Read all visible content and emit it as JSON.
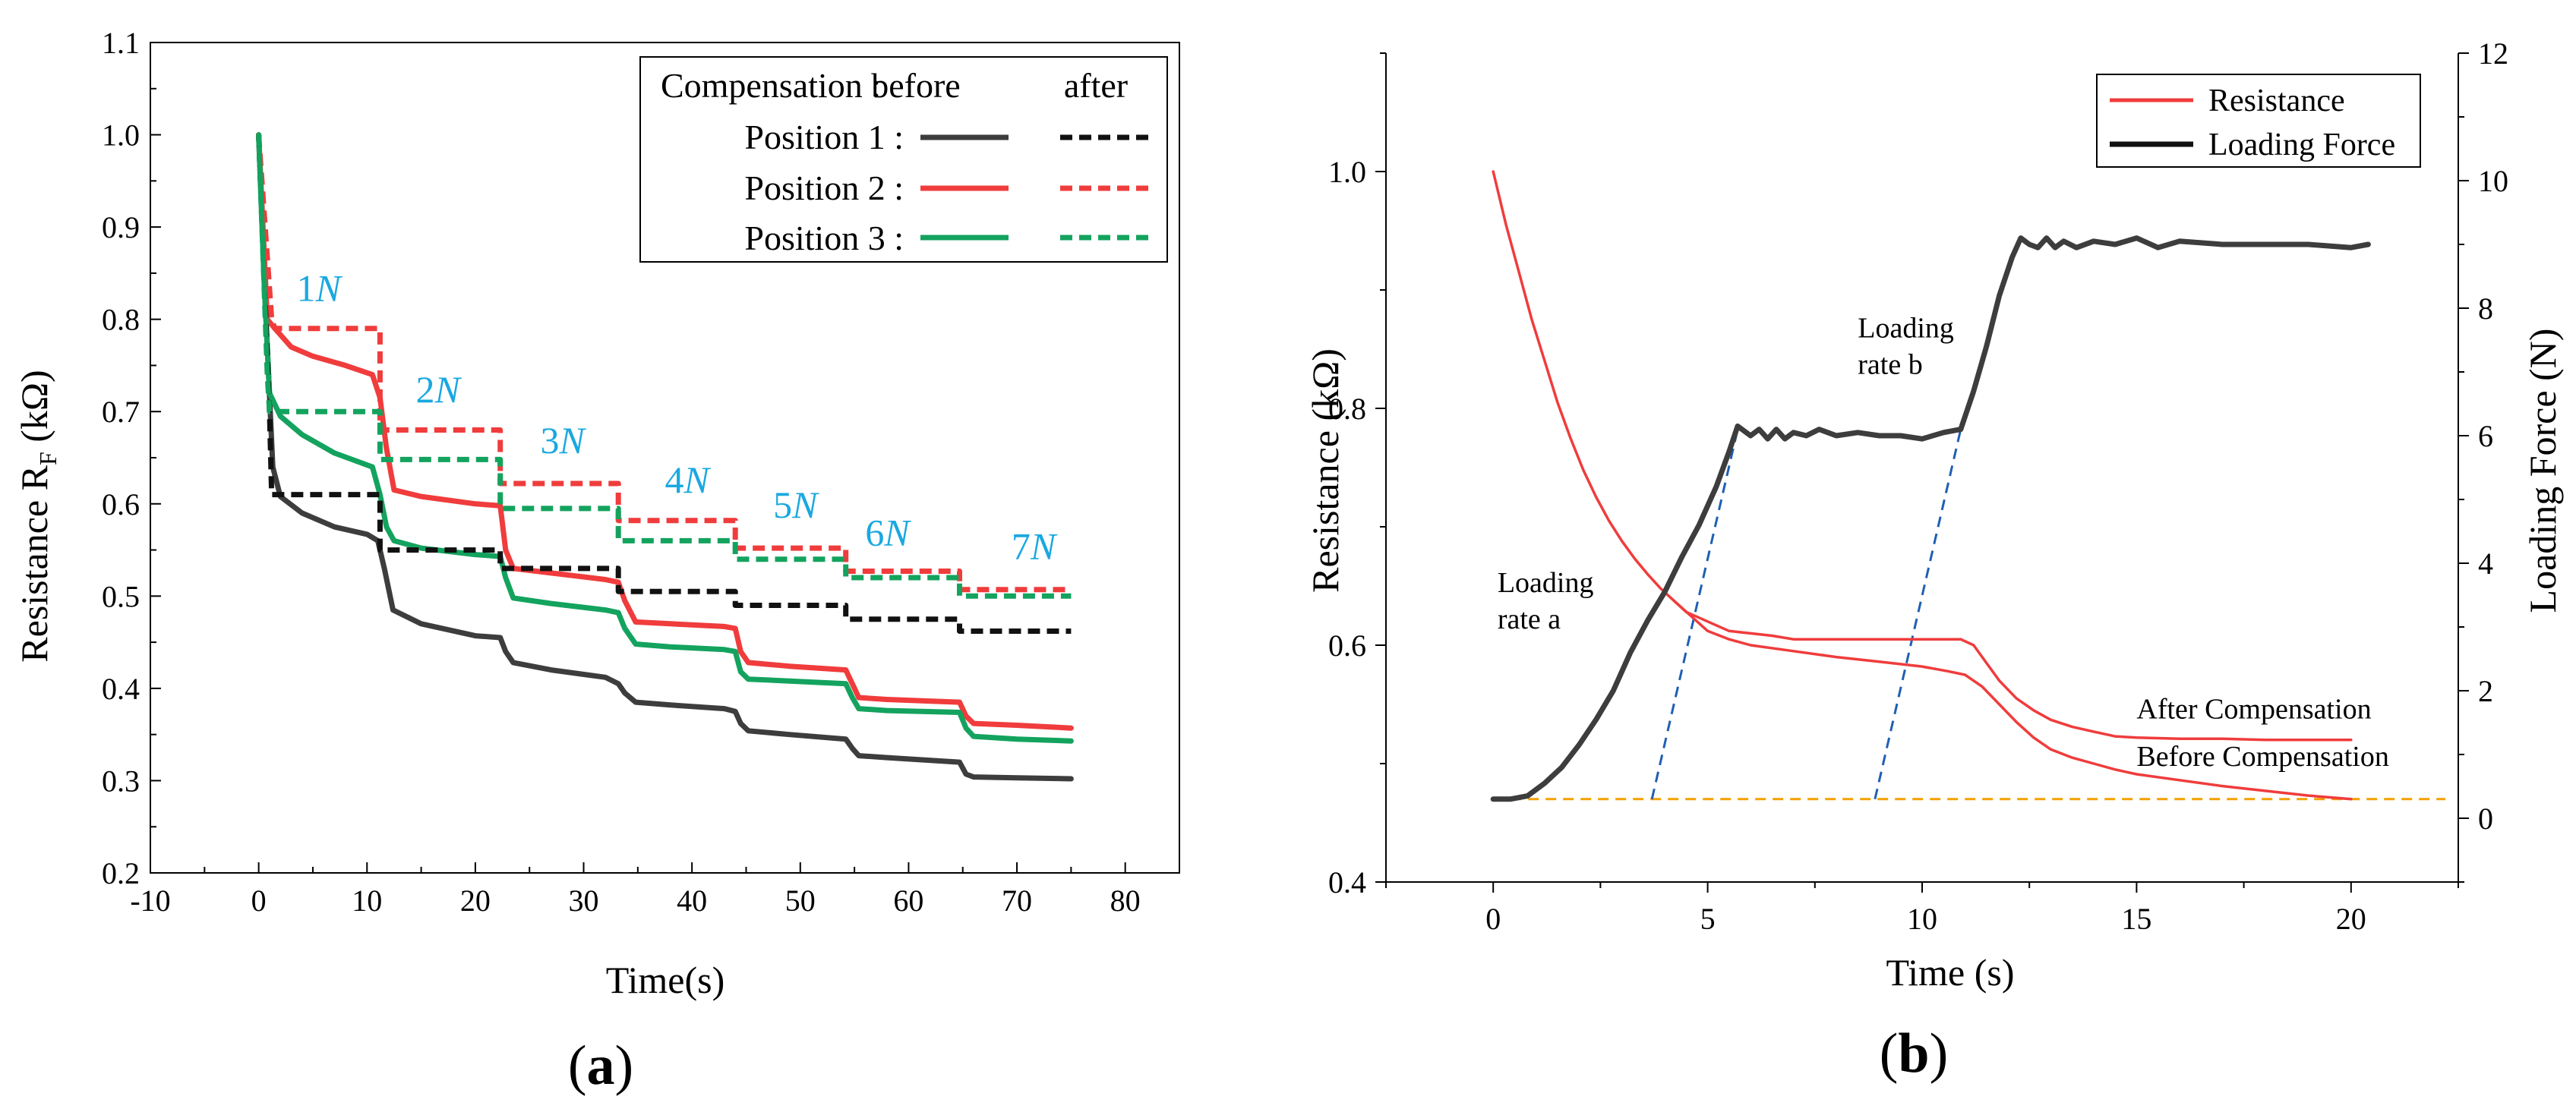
{
  "panels": [
    {
      "id": "a",
      "caption": {
        "open": "(",
        "letter": "a",
        "close": ")"
      },
      "chart_data": {
        "type": "line",
        "title": "",
        "xlabel": "Time(s)",
        "ylabel": "Resistance R",
        "ylabel_sub": "F",
        "ylabel_unit": " (kΩ)",
        "xlim": [
          -10,
          85
        ],
        "ylim": [
          0.2,
          1.1
        ],
        "xticks": [
          -10,
          0,
          10,
          20,
          30,
          40,
          50,
          60,
          70,
          80
        ],
        "yticks": [
          0.2,
          0.3,
          0.4,
          0.5,
          0.6,
          0.7,
          0.8,
          0.9,
          1.0,
          1.1
        ],
        "grid": false,
        "legend": {
          "placement": "top-right",
          "header_label": "Compensation :",
          "col_before": "before",
          "col_after": "after",
          "rows": [
            {
              "label": "Position 1 :",
              "color": "#3d3d3d"
            },
            {
              "label": "Position 2 :",
              "color": "#f03c3c"
            },
            {
              "label": "Position 3 :",
              "color": "#13a35e"
            }
          ]
        },
        "annotations": [
          {
            "num": "1",
            "unit": "N",
            "x": 3.5,
            "y": 0.82
          },
          {
            "num": "2",
            "unit": "N",
            "x": 14.5,
            "y": 0.71
          },
          {
            "num": "3",
            "unit": "N",
            "x": 26,
            "y": 0.655
          },
          {
            "num": "4",
            "unit": "N",
            "x": 37.5,
            "y": 0.612
          },
          {
            "num": "5",
            "unit": "N",
            "x": 47.5,
            "y": 0.585
          },
          {
            "num": "6",
            "unit": "N",
            "x": 56,
            "y": 0.555
          },
          {
            "num": "7",
            "unit": "N",
            "x": 69.5,
            "y": 0.54
          }
        ],
        "annotation_color": "#1aa8e0",
        "series": [
          {
            "name": "Position 1 before",
            "color": "#3d3d3d",
            "dash": false,
            "x": [
              0,
              0.6,
              1.3,
              2,
              4,
              7,
              10,
              11,
              11.6,
              12.4,
              15,
              20,
              22.3,
              22.8,
              23.5,
              27,
              32,
              33.2,
              33.8,
              34.8,
              38,
              43,
              44,
              44.5,
              45.2,
              49,
              54.2,
              54.8,
              55.4,
              58,
              64.7,
              65.3,
              66,
              70,
              75
            ],
            "y": [
              1.0,
              0.82,
              0.64,
              0.608,
              0.59,
              0.575,
              0.567,
              0.56,
              0.53,
              0.485,
              0.47,
              0.457,
              0.455,
              0.44,
              0.428,
              0.42,
              0.412,
              0.405,
              0.395,
              0.385,
              0.382,
              0.378,
              0.375,
              0.362,
              0.354,
              0.35,
              0.345,
              0.335,
              0.327,
              0.325,
              0.32,
              0.307,
              0.304,
              0.303,
              0.302
            ]
          },
          {
            "name": "Position 2 before",
            "color": "#f03c3c",
            "dash": false,
            "x": [
              0,
              0.8,
              1.5,
              3,
              5,
              8,
              10.5,
              11.2,
              11.8,
              12.5,
              15,
              20,
              22.3,
              22.8,
              23.5,
              27,
              32,
              33.2,
              33.8,
              34.8,
              38,
              43,
              44,
              44.5,
              45.2,
              49,
              54.2,
              54.8,
              55.4,
              58,
              64.7,
              65.3,
              66,
              70,
              75
            ],
            "y": [
              1.0,
              0.8,
              0.79,
              0.77,
              0.76,
              0.75,
              0.74,
              0.715,
              0.66,
              0.615,
              0.608,
              0.6,
              0.598,
              0.55,
              0.53,
              0.525,
              0.518,
              0.515,
              0.495,
              0.472,
              0.47,
              0.467,
              0.465,
              0.44,
              0.428,
              0.424,
              0.42,
              0.405,
              0.39,
              0.388,
              0.385,
              0.37,
              0.362,
              0.36,
              0.357
            ]
          },
          {
            "name": "Position 3 before",
            "color": "#13a35e",
            "dash": false,
            "x": [
              0,
              0.5,
              1,
              2,
              4,
              7,
              10.5,
              11.2,
              11.8,
              12.5,
              15,
              20,
              22.3,
              22.8,
              23.5,
              27,
              32,
              33.2,
              33.8,
              34.8,
              38,
              43,
              44,
              44.5,
              45.2,
              49,
              54.2,
              54.8,
              55.4,
              58,
              64.7,
              65.3,
              66,
              70,
              75
            ],
            "y": [
              1.0,
              0.84,
              0.72,
              0.695,
              0.675,
              0.655,
              0.64,
              0.61,
              0.575,
              0.56,
              0.552,
              0.545,
              0.543,
              0.52,
              0.498,
              0.492,
              0.485,
              0.482,
              0.465,
              0.448,
              0.445,
              0.442,
              0.44,
              0.418,
              0.41,
              0.408,
              0.405,
              0.39,
              0.378,
              0.376,
              0.374,
              0.357,
              0.348,
              0.345,
              0.343
            ]
          },
          {
            "name": "Position 1 after",
            "color": "#111111",
            "dash": true,
            "x": [
              0,
              1,
              1.2,
              11.2,
              11.2,
              22.3,
              22.3,
              33.2,
              33.2,
              44,
              44,
              54.2,
              54.2,
              64.7,
              64.7,
              75
            ],
            "y": [
              1.0,
              0.7,
              0.61,
              0.61,
              0.55,
              0.55,
              0.53,
              0.53,
              0.505,
              0.505,
              0.49,
              0.49,
              0.475,
              0.475,
              0.462,
              0.462
            ]
          },
          {
            "name": "Position 2 after",
            "color": "#f03c3c",
            "dash": true,
            "x": [
              0,
              1.2,
              1.5,
              11.2,
              11.2,
              22.3,
              22.3,
              33.2,
              33.2,
              44,
              44,
              54.2,
              54.2,
              64.7,
              64.7,
              75
            ],
            "y": [
              1.0,
              0.8,
              0.79,
              0.79,
              0.68,
              0.68,
              0.622,
              0.622,
              0.582,
              0.582,
              0.552,
              0.552,
              0.527,
              0.527,
              0.507,
              0.507
            ]
          },
          {
            "name": "Position 3 after",
            "color": "#13a35e",
            "dash": true,
            "x": [
              0,
              0.8,
              1,
              11.2,
              11.2,
              22.3,
              22.3,
              33.2,
              33.2,
              44,
              44,
              54.2,
              54.2,
              64.7,
              64.7,
              75
            ],
            "y": [
              1.0,
              0.74,
              0.7,
              0.7,
              0.648,
              0.648,
              0.595,
              0.595,
              0.56,
              0.56,
              0.54,
              0.54,
              0.52,
              0.52,
              0.5,
              0.5
            ]
          }
        ]
      }
    },
    {
      "id": "b",
      "caption": {
        "open": "(",
        "letter": "b",
        "close": ")"
      },
      "chart_data": {
        "type": "line",
        "title": "",
        "xlabel": "Time (s)",
        "ylabel": "Resistance (kΩ)",
        "y2label": "Loading Force (N)",
        "xlim": [
          -2.5,
          22.5
        ],
        "ylim": [
          0.4,
          1.1
        ],
        "y2lim": [
          -1,
          12
        ],
        "xticks": [
          0,
          5,
          10,
          15,
          20
        ],
        "yticks": [
          0.4,
          0.6,
          0.8,
          1.0
        ],
        "y2ticks": [
          0,
          2,
          4,
          6,
          8,
          10,
          12
        ],
        "grid": false,
        "legend": {
          "placement": "top-right",
          "entries": [
            {
              "label": "Resistance",
              "color": "#f03c3c"
            },
            {
              "label": "Loading Force",
              "color": "#111111"
            }
          ]
        },
        "annotations": [
          {
            "lines": [
              "Loading",
              "rate a"
            ],
            "x": 0.1,
            "y": 0.645
          },
          {
            "lines": [
              "Loading",
              "rate b"
            ],
            "x": 8.5,
            "y": 0.86
          },
          {
            "lines": [
              "After Compensation"
            ],
            "x": 15,
            "y": 0.538
          },
          {
            "lines": [
              "Before Compensation"
            ],
            "x": 15,
            "y": 0.498
          }
        ],
        "reference_line": {
          "y": 0.47,
          "color": "#f5a000",
          "dash": true
        },
        "rate_lines": [
          {
            "x": [
              3.7,
              5.7
            ],
            "y2": [
              0.3,
              6.1
            ],
            "color": "#1f5fb3"
          },
          {
            "x": [
              8.9,
              10.9
            ],
            "y2": [
              0.3,
              6.1
            ],
            "color": "#1f5fb3"
          }
        ],
        "series": [
          {
            "name": "Resistance after compensation",
            "axis": "left",
            "color": "#f03c3c",
            "x": [
              0,
              0.3,
              0.6,
              0.9,
              1.2,
              1.5,
              1.8,
              2.1,
              2.4,
              2.7,
              3.0,
              3.3,
              3.6,
              3.9,
              4.2,
              4.5,
              5.0,
              5.5,
              6.0,
              6.5,
              7.0,
              8.0,
              9.0,
              10.0,
              10.5,
              10.9
            ],
            "y": [
              1.0,
              0.955,
              0.915,
              0.875,
              0.84,
              0.805,
              0.775,
              0.748,
              0.725,
              0.705,
              0.688,
              0.673,
              0.66,
              0.648,
              0.638,
              0.628,
              0.62,
              0.612,
              0.61,
              0.608,
              0.605,
              0.605,
              0.605,
              0.605,
              0.605,
              0.605
            ]
          },
          {
            "name": "Resistance after compensation plateau",
            "axis": "left",
            "color": "#f03c3c",
            "x": [
              10.9,
              11.2,
              11.5,
              11.8,
              12.2,
              12.6,
              13.0,
              13.5,
              14.0,
              14.5,
              15.0,
              16.0,
              17.0,
              18.0,
              19.0,
              20.0
            ],
            "y": [
              0.605,
              0.6,
              0.585,
              0.57,
              0.555,
              0.545,
              0.537,
              0.531,
              0.527,
              0.523,
              0.522,
              0.521,
              0.521,
              0.52,
              0.52,
              0.52
            ]
          },
          {
            "name": "Resistance before compensation",
            "axis": "left",
            "color": "#f03c3c",
            "x": [
              4.2,
              4.6,
              5.0,
              5.5,
              6.0,
              7.0,
              8.0,
              9.0,
              10.0,
              10.6,
              11.0,
              11.4,
              11.8,
              12.2,
              12.6,
              13.0,
              13.5,
              14.0,
              14.5,
              15.0,
              16.0,
              17.0,
              18.0,
              19.0,
              20.0
            ],
            "y": [
              0.638,
              0.625,
              0.612,
              0.605,
              0.6,
              0.595,
              0.59,
              0.586,
              0.582,
              0.578,
              0.575,
              0.565,
              0.55,
              0.535,
              0.522,
              0.512,
              0.505,
              0.5,
              0.495,
              0.491,
              0.486,
              0.481,
              0.477,
              0.473,
              0.47
            ]
          },
          {
            "name": "Loading Force",
            "axis": "right",
            "color": "#3d3d3d",
            "x": [
              0,
              0.4,
              0.8,
              1.2,
              1.6,
              2.0,
              2.4,
              2.8,
              3.2,
              3.6,
              4.0,
              4.4,
              4.8,
              5.2,
              5.5,
              5.7,
              6.0,
              6.2,
              6.4,
              6.6,
              6.8,
              7.0,
              7.3,
              7.6,
              8.0,
              8.5,
              9.0,
              9.5,
              10.0,
              10.5,
              10.9,
              11.2,
              11.5,
              11.8,
              12.1,
              12.3,
              12.5,
              12.7,
              12.9,
              13.1,
              13.3,
              13.6,
              14.0,
              14.5,
              15.0,
              15.5,
              16.0,
              17.0,
              18.0,
              19.0,
              20.0,
              20.4
            ],
            "y": [
              0.3,
              0.3,
              0.35,
              0.55,
              0.8,
              1.15,
              1.55,
              2.0,
              2.6,
              3.1,
              3.55,
              4.1,
              4.6,
              5.2,
              5.75,
              6.15,
              6.0,
              6.1,
              5.95,
              6.1,
              5.95,
              6.05,
              6.0,
              6.1,
              6.0,
              6.05,
              6.0,
              6.0,
              5.95,
              6.05,
              6.1,
              6.7,
              7.4,
              8.2,
              8.8,
              9.1,
              9.0,
              8.95,
              9.1,
              8.95,
              9.05,
              8.95,
              9.05,
              9.0,
              9.1,
              8.95,
              9.05,
              9.0,
              9.0,
              9.0,
              8.95,
              9.0
            ]
          }
        ]
      }
    }
  ]
}
